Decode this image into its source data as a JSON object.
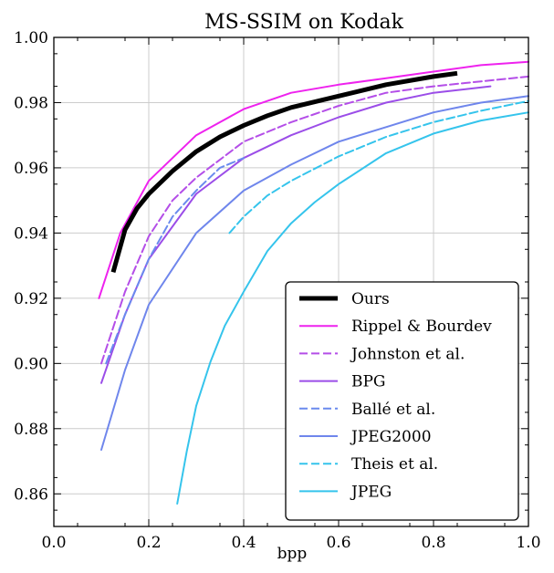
{
  "chart_data": {
    "type": "line",
    "title": "MS-SSIM on Kodak",
    "xlabel": "bpp",
    "ylabel": "",
    "xlim": [
      0.0,
      1.0
    ],
    "ylim": [
      0.85,
      1.0
    ],
    "xticks": [
      0.0,
      0.2,
      0.4,
      0.6,
      0.8,
      1.0
    ],
    "yticks": [
      0.86,
      0.88,
      0.9,
      0.92,
      0.94,
      0.96,
      0.98,
      1.0
    ],
    "xtick_labels": [
      "0.0",
      "0.2",
      "0.4",
      "0.6",
      "0.8",
      "1.0"
    ],
    "ytick_labels": [
      "0.86",
      "0.88",
      "0.90",
      "0.92",
      "0.94",
      "0.96",
      "0.98",
      "1.00"
    ],
    "grid": true,
    "legend_position": "lower-right",
    "series": [
      {
        "name": "Ours",
        "color": "#000000",
        "style": "solid",
        "width": 5,
        "x": [
          0.125,
          0.15,
          0.175,
          0.2,
          0.25,
          0.3,
          0.35,
          0.4,
          0.45,
          0.5,
          0.6,
          0.7,
          0.8,
          0.85
        ],
        "y": [
          0.928,
          0.941,
          0.9475,
          0.952,
          0.959,
          0.965,
          0.9695,
          0.973,
          0.976,
          0.9785,
          0.982,
          0.9855,
          0.988,
          0.989
        ]
      },
      {
        "name": "Rippel & Bourdev",
        "color": "#ee22ee",
        "style": "solid",
        "width": 2,
        "x": [
          0.095,
          0.14,
          0.2,
          0.3,
          0.4,
          0.5,
          0.6,
          0.7,
          0.8,
          0.9,
          1.0
        ],
        "y": [
          0.92,
          0.94,
          0.956,
          0.97,
          0.978,
          0.983,
          0.9855,
          0.9875,
          0.9895,
          0.9915,
          0.9925
        ]
      },
      {
        "name": "Johnston et al.",
        "color": "#b44ee8",
        "style": "dashed",
        "width": 2,
        "x": [
          0.1,
          0.15,
          0.2,
          0.25,
          0.3,
          0.4,
          0.5,
          0.6,
          0.7,
          0.8,
          0.9,
          1.0
        ],
        "y": [
          0.9,
          0.922,
          0.939,
          0.95,
          0.957,
          0.968,
          0.974,
          0.979,
          0.983,
          0.985,
          0.9865,
          0.988
        ]
      },
      {
        "name": "BPG",
        "color": "#9b4de8",
        "style": "solid",
        "width": 2,
        "x": [
          0.1,
          0.15,
          0.2,
          0.3,
          0.4,
          0.5,
          0.6,
          0.7,
          0.8,
          0.92
        ],
        "y": [
          0.894,
          0.915,
          0.932,
          0.952,
          0.963,
          0.97,
          0.9755,
          0.98,
          0.983,
          0.985
        ]
      },
      {
        "name": "Ballé et al.",
        "color": "#6a8aee",
        "style": "dashed",
        "width": 2,
        "x": [
          0.11,
          0.15,
          0.2,
          0.25,
          0.3,
          0.35,
          0.4
        ],
        "y": [
          0.9,
          0.915,
          0.932,
          0.945,
          0.953,
          0.96,
          0.963
        ]
      },
      {
        "name": "JPEG2000",
        "color": "#6f86ec",
        "style": "solid",
        "width": 2,
        "x": [
          0.1,
          0.15,
          0.2,
          0.3,
          0.4,
          0.5,
          0.6,
          0.7,
          0.8,
          0.9,
          1.0
        ],
        "y": [
          0.8735,
          0.898,
          0.918,
          0.94,
          0.953,
          0.961,
          0.968,
          0.9725,
          0.977,
          0.98,
          0.982
        ]
      },
      {
        "name": "Theis et al.",
        "color": "#35c4ec",
        "style": "dashed",
        "width": 2,
        "x": [
          0.37,
          0.4,
          0.45,
          0.5,
          0.6,
          0.7,
          0.8,
          0.9,
          1.0
        ],
        "y": [
          0.94,
          0.945,
          0.9515,
          0.956,
          0.9635,
          0.9695,
          0.974,
          0.9775,
          0.9805
        ]
      },
      {
        "name": "JPEG",
        "color": "#35c4ec",
        "style": "solid",
        "width": 2,
        "x": [
          0.26,
          0.28,
          0.3,
          0.33,
          0.36,
          0.4,
          0.45,
          0.5,
          0.55,
          0.6,
          0.7,
          0.8,
          0.9,
          1.0
        ],
        "y": [
          0.857,
          0.873,
          0.887,
          0.9005,
          0.9115,
          0.922,
          0.9345,
          0.943,
          0.9495,
          0.955,
          0.9645,
          0.9705,
          0.9745,
          0.977
        ]
      }
    ]
  }
}
